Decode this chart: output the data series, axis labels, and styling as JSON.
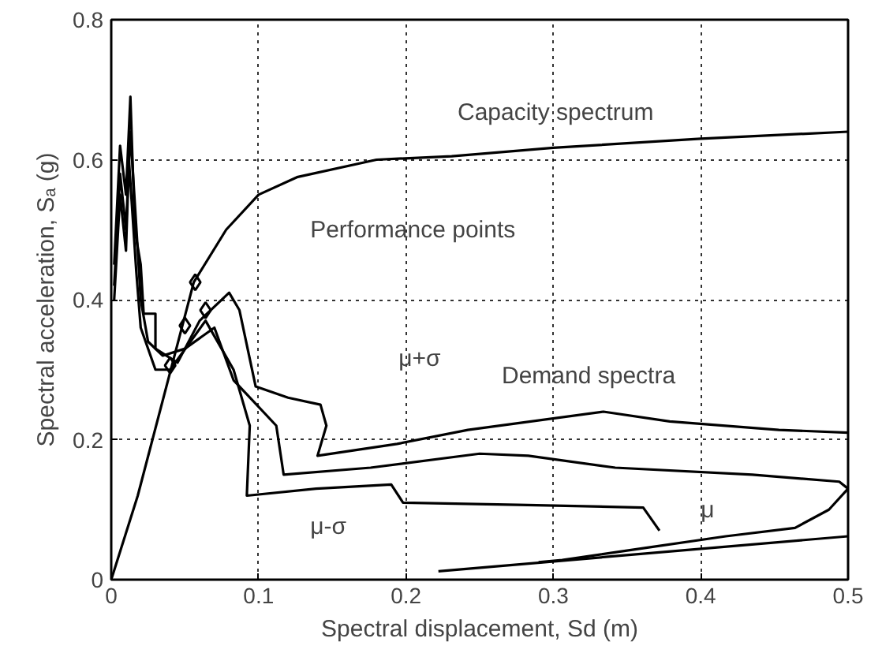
{
  "chart_data": {
    "type": "line",
    "xlabel": "Spectral displacement, Sd (m)",
    "ylabel": "Spectral acceleration, Sₐ (g)",
    "xlim": [
      0,
      0.5
    ],
    "ylim": [
      0,
      0.8
    ],
    "xticks": [
      0,
      0.1,
      0.2,
      0.3,
      0.4,
      0.5
    ],
    "yticks": [
      0,
      0.2,
      0.4,
      0.6,
      0.8
    ],
    "grid": true,
    "line_style": "solid",
    "series": [
      {
        "color": "#000000",
        "x": [
          0,
          0.018,
          0.056,
          0.078,
          0.1,
          0.126,
          0.18,
          0.231,
          0.3,
          0.4,
          0.5
        ],
        "values": [
          0,
          0.12,
          0.425,
          0.5,
          0.55,
          0.575,
          0.6,
          0.605,
          0.617,
          0.63,
          0.64
        ]
      },
      {
        "color": "#000000",
        "x": [
          0.002,
          0.006,
          0.01,
          0.013,
          0.016,
          0.02,
          0.022,
          0.03,
          0.03,
          0.045,
          0.06,
          0.08,
          0.087,
          0.098,
          0.12,
          0.142,
          0.146,
          0.14,
          0.194,
          0.242,
          0.334,
          0.379,
          0.453,
          0.5
        ],
        "values": [
          0.45,
          0.62,
          0.55,
          0.69,
          0.5,
          0.45,
          0.38,
          0.38,
          0.33,
          0.31,
          0.37,
          0.41,
          0.385,
          0.276,
          0.26,
          0.25,
          0.22,
          0.177,
          0.194,
          0.214,
          0.24,
          0.226,
          0.214,
          0.21
        ]
      },
      {
        "color": "#000000",
        "x": [
          0.002,
          0.006,
          0.01,
          0.013,
          0.018,
          0.02,
          0.025,
          0.035,
          0.05,
          0.07,
          0.083,
          0.112,
          0.117,
          0.176,
          0.25,
          0.283,
          0.342,
          0.435,
          0.494,
          0.5,
          0.487,
          0.464,
          0.417,
          0.361,
          0.306,
          0.29
        ],
        "values": [
          0.42,
          0.58,
          0.5,
          0.64,
          0.47,
          0.4,
          0.34,
          0.32,
          0.33,
          0.36,
          0.285,
          0.22,
          0.15,
          0.16,
          0.18,
          0.177,
          0.16,
          0.15,
          0.14,
          0.13,
          0.1,
          0.074,
          0.062,
          0.045,
          0.028,
          0.025
        ]
      },
      {
        "color": "#000000",
        "x": [
          0.002,
          0.006,
          0.01,
          0.012,
          0.017,
          0.02,
          0.03,
          0.04,
          0.064,
          0.083,
          0.094,
          0.092,
          0.139,
          0.19,
          0.198,
          0.276,
          0.361,
          0.372
        ],
        "values": [
          0.4,
          0.55,
          0.47,
          0.6,
          0.44,
          0.36,
          0.3,
          0.3,
          0.37,
          0.3,
          0.22,
          0.12,
          0.13,
          0.136,
          0.11,
          0.107,
          0.103,
          0.07
        ]
      },
      {
        "color": "#000000",
        "x": [
          0.222,
          0.5
        ],
        "values": [
          0.012,
          0.062
        ]
      },
      {
        "type": "scatter",
        "marker": "diamond",
        "color": "#000000",
        "x": [
          0.04,
          0.05,
          0.057,
          0.064
        ],
        "values": [
          0.306,
          0.363,
          0.425,
          0.385
        ]
      }
    ],
    "annotations": [
      "Capacity spectrum",
      "Performance points",
      "Demand spectra",
      "μ+σ",
      "μ-σ",
      "μ"
    ]
  }
}
